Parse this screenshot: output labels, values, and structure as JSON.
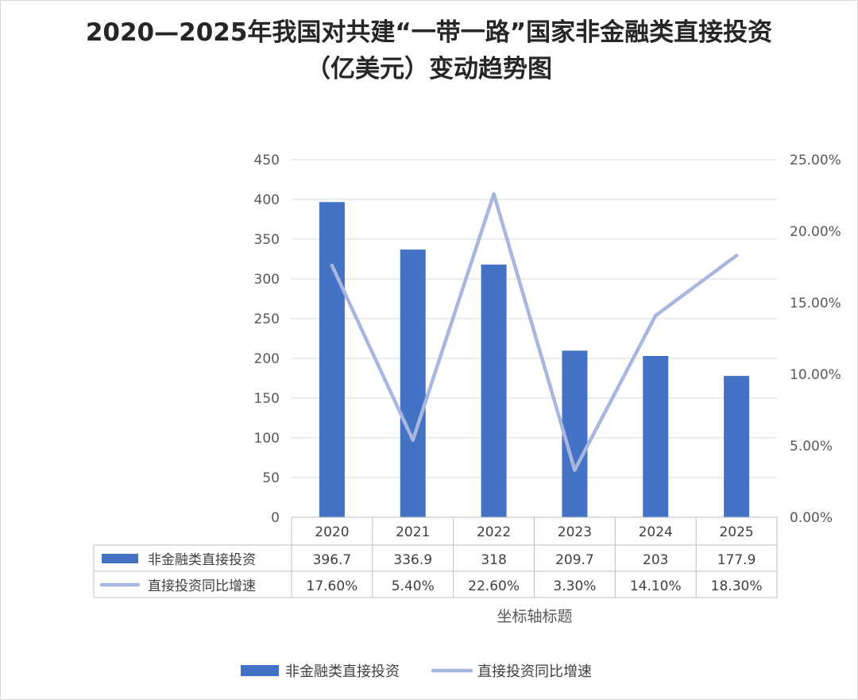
{
  "chart_data": {
    "type": "bar",
    "title": "2020—2025年我国对共建“一带一路”国家非金融类直接投资（亿美元）变动趋势图",
    "categories": [
      "2020",
      "2021",
      "2022",
      "2023",
      "2024",
      "2025"
    ],
    "series": [
      {
        "name": "非金融类直接投资",
        "type": "bar",
        "axis": "left",
        "color": "#4472c4",
        "values": [
          396.7,
          336.9,
          318,
          209.7,
          203,
          177.9
        ],
        "labels": [
          "396.7",
          "336.9",
          "318",
          "209.7",
          "203",
          "177.9"
        ]
      },
      {
        "name": "直接投资同比增速",
        "type": "line",
        "axis": "right",
        "color": "#a9b7e0",
        "values": [
          17.6,
          5.4,
          22.6,
          3.3,
          14.1,
          18.3
        ],
        "labels": [
          "17.60%",
          "5.40%",
          "22.60%",
          "3.30%",
          "14.10%",
          "18.30%"
        ]
      }
    ],
    "y_left": {
      "min": 0,
      "max": 450,
      "ticks": [
        "0",
        "50",
        "100",
        "150",
        "200",
        "250",
        "300",
        "350",
        "400",
        "450"
      ]
    },
    "y_right": {
      "min": 0,
      "max": 25,
      "ticks": [
        "0.00%",
        "5.00%",
        "10.00%",
        "15.00%",
        "20.00%",
        "25.00%"
      ]
    },
    "xlabel": "坐标轴标题",
    "grid": true,
    "data_table": true,
    "legend_position": "bottom"
  }
}
